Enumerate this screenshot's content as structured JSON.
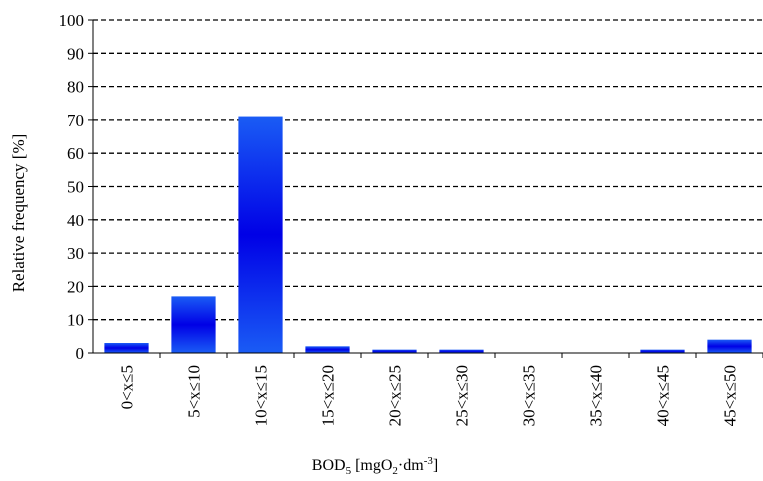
{
  "chart_data": {
    "type": "bar",
    "title": "",
    "xlabel": "BOD",
    "xlabel_sub": "5",
    "xlabel_unit_open": " [mgO",
    "xlabel_unit_sub": "2",
    "xlabel_unit_mid": "·dm",
    "xlabel_unit_sup": "-3",
    "xlabel_unit_close": "]",
    "ylabel": "Relative frequency [%]",
    "ylim": [
      0,
      100
    ],
    "yticks": [
      "0",
      "10",
      "20",
      "30",
      "40",
      "50",
      "60",
      "70",
      "80",
      "90",
      "100"
    ],
    "grid": true,
    "legend": "none",
    "categories": [
      "0<x≤5",
      "5<x≤10",
      "10<x≤15",
      "15<x≤20",
      "20<x≤25",
      "25<x≤30",
      "30<x≤35",
      "35<x≤40",
      "40<x≤45",
      "45<x≤50"
    ],
    "values": [
      3,
      17,
      71,
      2,
      1,
      1,
      0,
      0,
      1,
      4
    ],
    "colors": {
      "bar_edge": "#1a5cf5",
      "bar_center": "#0000e6",
      "grid": "#000000",
      "axis": "#000000"
    }
  }
}
